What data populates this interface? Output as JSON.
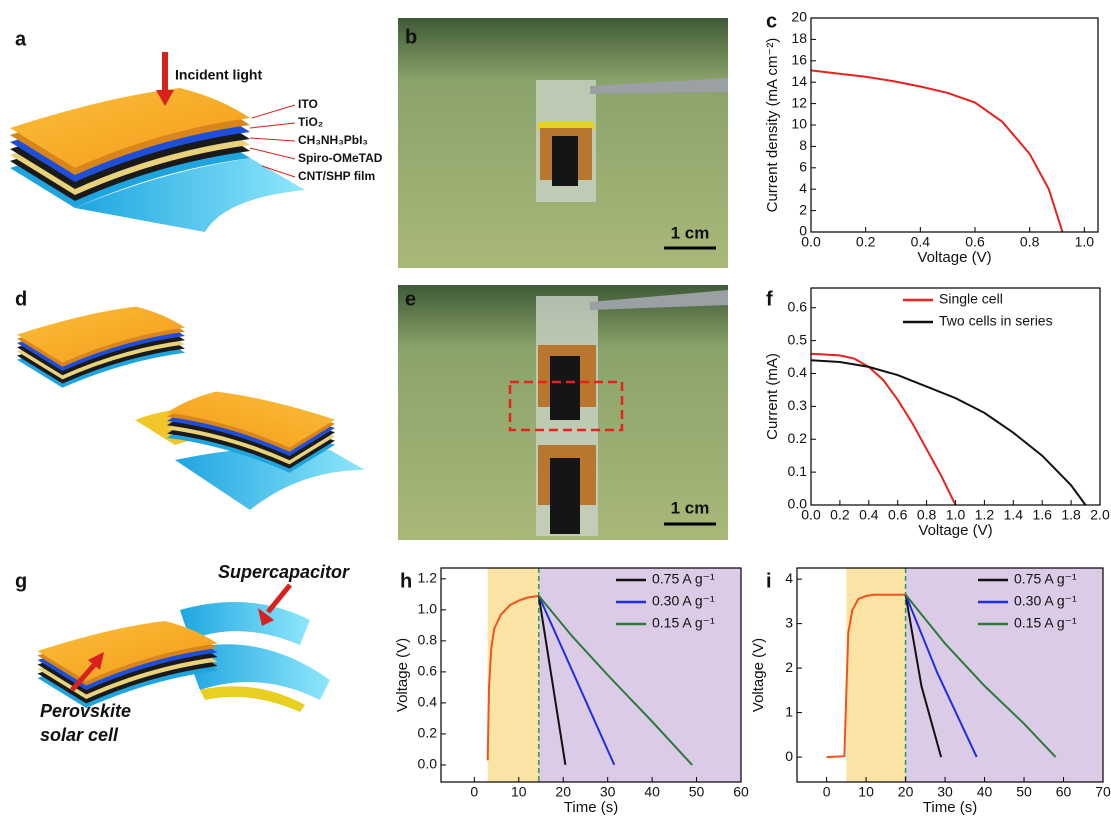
{
  "panel_labels": [
    "a",
    "b",
    "c",
    "d",
    "e",
    "f",
    "g",
    "h",
    "i"
  ],
  "diagram_a": {
    "incident_light": "Incident light",
    "layers": [
      "ITO",
      "TiO₂",
      "CH₃NH₃PbI₃",
      "Spiro-OMeTAD",
      "CNT/SHP film"
    ]
  },
  "diagram_g": {
    "supercapacitor": "Supercapacitor",
    "solar_cell": [
      "Perovskite",
      "solar cell"
    ]
  },
  "photo_b": {
    "scale_bar": "1 cm"
  },
  "photo_e": {
    "scale_bar": "1 cm"
  },
  "chart_data": [
    {
      "type": "line",
      "xlabel": "Voltage (V)",
      "ylabel": "Current density (mA cm⁻²)",
      "xlim": [
        0,
        1.05
      ],
      "xticks": [
        {
          "value": 0,
          "label": "0.0"
        },
        0.2,
        0.4,
        0.6,
        0.8,
        {
          "value": 1,
          "label": "1.0"
        }
      ],
      "ylim": [
        0,
        20
      ],
      "yticks": [
        0,
        2,
        4,
        6,
        8,
        10,
        12,
        14,
        16,
        18,
        20
      ],
      "series": [
        {
          "color": "#e8221c",
          "x": [
            0,
            0.1,
            0.2,
            0.3,
            0.4,
            0.5,
            0.6,
            0.7,
            0.8,
            0.87,
            0.92
          ],
          "values": [
            15.1,
            14.8,
            14.5,
            14.1,
            13.6,
            13.0,
            12.1,
            10.3,
            7.3,
            4.0,
            0
          ]
        }
      ]
    },
    {
      "type": "line",
      "xlabel": "Voltage (V)",
      "ylabel": "Current (mA)",
      "legend": "upper right",
      "xlim": [
        0,
        2
      ],
      "xticks": [
        {
          "value": 0,
          "label": "0.0"
        },
        0.2,
        0.4,
        0.6,
        0.8,
        {
          "value": 1,
          "label": "1.0"
        },
        1.2,
        1.4,
        1.6,
        1.8,
        {
          "value": 2,
          "label": "2.0"
        }
      ],
      "ylim": [
        0,
        0.66
      ],
      "yticks": [
        {
          "value": 0,
          "label": "0.0"
        },
        0.1,
        0.2,
        0.3,
        0.4,
        0.5,
        0.6
      ],
      "series": [
        {
          "name": "Single cell",
          "color": "#e8221c",
          "x": [
            0,
            0.2,
            0.3,
            0.4,
            0.5,
            0.6,
            0.7,
            0.8,
            0.9,
            1.0
          ],
          "values": [
            0.46,
            0.455,
            0.445,
            0.42,
            0.38,
            0.32,
            0.25,
            0.17,
            0.09,
            0
          ]
        },
        {
          "name": "Two cells in series",
          "color": "#111111",
          "x": [
            0,
            0.2,
            0.4,
            0.6,
            0.8,
            1.0,
            1.2,
            1.4,
            1.6,
            1.8,
            1.9
          ],
          "values": [
            0.44,
            0.435,
            0.42,
            0.395,
            0.36,
            0.325,
            0.28,
            0.22,
            0.15,
            0.06,
            0
          ]
        }
      ]
    },
    {
      "type": "line",
      "xlabel": "Time (s)",
      "ylabel": "Voltage (V)",
      "legend": "upper right",
      "xlim": [
        -7.5,
        60
      ],
      "xticks": [
        0,
        10,
        20,
        30,
        40,
        50,
        60
      ],
      "ylim": [
        -0.11,
        1.27
      ],
      "yticks": [
        {
          "value": 0,
          "label": "0.0"
        },
        0.2,
        0.4,
        0.6,
        0.8,
        {
          "value": 1,
          "label": "1.0"
        },
        1.2
      ],
      "regions": [
        {
          "x": [
            3,
            14.5
          ],
          "color": "#fbe3a6"
        },
        {
          "x": [
            14.5,
            60
          ],
          "color": "#dccbe6"
        }
      ],
      "divider": 14.5,
      "divider_color": "#2e9a4a",
      "series": [
        {
          "color": "#f0541c",
          "x": [
            3,
            3.3,
            3.8,
            4.5,
            6,
            8,
            10,
            12,
            14.5
          ],
          "values": [
            0.03,
            0.5,
            0.75,
            0.88,
            0.97,
            1.03,
            1.06,
            1.08,
            1.09
          ]
        },
        {
          "name": "0.75 A g⁻¹",
          "color": "#111111",
          "x": [
            14.5,
            20.5
          ],
          "values": [
            1.09,
            0
          ]
        },
        {
          "name": "0.30 A g⁻¹",
          "color": "#1f2fe0",
          "x": [
            14.5,
            31.5
          ],
          "values": [
            1.09,
            0
          ]
        },
        {
          "name": "0.15 A g⁻¹",
          "color": "#2a7a3a",
          "x": [
            14.5,
            22,
            30,
            40,
            49
          ],
          "values": [
            1.09,
            0.83,
            0.58,
            0.28,
            0
          ]
        }
      ]
    },
    {
      "type": "line",
      "xlabel": "Time (s)",
      "ylabel": "Voltage (V)",
      "legend": "upper right",
      "xlim": [
        -7.5,
        70
      ],
      "xticks": [
        0,
        10,
        20,
        30,
        40,
        50,
        60,
        70
      ],
      "ylim": [
        -0.56,
        4.25
      ],
      "yticks": [
        0,
        1,
        2,
        3,
        4
      ],
      "regions": [
        {
          "x": [
            5,
            20
          ],
          "color": "#fbe3a6"
        },
        {
          "x": [
            20,
            70
          ],
          "color": "#dccbe6"
        }
      ],
      "divider": 20,
      "divider_color": "#2e9a4a",
      "series": [
        {
          "color": "#f0541c",
          "x": [
            0,
            4.5,
            5,
            5.5,
            6.5,
            8,
            10,
            12,
            20
          ],
          "values": [
            0,
            0.02,
            1.5,
            2.8,
            3.3,
            3.55,
            3.62,
            3.65,
            3.65
          ]
        },
        {
          "name": "0.75 A g⁻¹",
          "color": "#111111",
          "x": [
            20,
            24,
            29
          ],
          "values": [
            3.65,
            1.6,
            0
          ]
        },
        {
          "name": "0.30 A g⁻¹",
          "color": "#1f2fe0",
          "x": [
            20,
            28,
            38
          ],
          "values": [
            3.65,
            1.9,
            0
          ]
        },
        {
          "name": "0.15 A g⁻¹",
          "color": "#2a7a3a",
          "x": [
            20,
            30,
            40,
            50,
            58
          ],
          "values": [
            3.65,
            2.55,
            1.6,
            0.75,
            0
          ]
        }
      ]
    }
  ]
}
